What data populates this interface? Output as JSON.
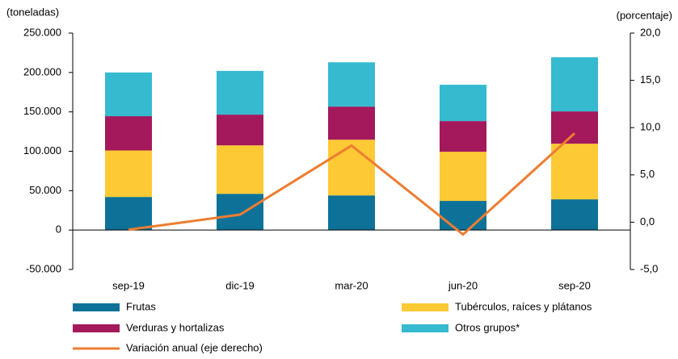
{
  "chart_data": {
    "type": "stacked-bar-line",
    "y_label": "(toneladas)",
    "y2_label": "(porcentaje)",
    "categories": [
      "sep-19",
      "dic-19",
      "mar-20",
      "jun-20",
      "sep-20"
    ],
    "series": [
      {
        "name": "Frutas",
        "color": "#0e7298",
        "values": [
          42000,
          46000,
          44000,
          37000,
          39000
        ]
      },
      {
        "name": "Tubérculos, raíces y plátanos",
        "color": "#fdc934",
        "values": [
          59000,
          61500,
          70700,
          62400,
          70600
        ]
      },
      {
        "name": "Verduras y hortalizas",
        "color": "#a3195b",
        "values": [
          43500,
          39000,
          42000,
          38900,
          41000
        ]
      },
      {
        "name": "Otros grupos*",
        "color": "#35bad0",
        "values": [
          55500,
          55500,
          56200,
          46100,
          68700
        ]
      },
      {
        "name": "Variación anual (eje derecho)",
        "color": "#ed7d31",
        "type": "line",
        "axis": "y2",
        "values": [
          -0.8,
          0.8,
          8.1,
          -1.3,
          9.4
        ]
      }
    ],
    "ylim": [
      -50000,
      250000
    ],
    "yticks": [
      {
        "value": -50000,
        "label": "-50.000"
      },
      0,
      {
        "value": 50000,
        "label": "50.000"
      },
      {
        "value": 100000,
        "label": "100.000"
      },
      {
        "value": 150000,
        "label": "150.000"
      },
      {
        "value": 200000,
        "label": "200.000"
      },
      {
        "value": 250000,
        "label": "250.000"
      }
    ],
    "y2lim": [
      -5,
      20
    ],
    "y2ticks": [
      {
        "value": -5,
        "label": "-5,0"
      },
      {
        "value": 0,
        "label": "0,0"
      },
      {
        "value": 5,
        "label": "5,0"
      },
      {
        "value": 10,
        "label": "10,0"
      },
      {
        "value": 15,
        "label": "15,0"
      },
      {
        "value": 20,
        "label": "20,0"
      }
    ]
  }
}
